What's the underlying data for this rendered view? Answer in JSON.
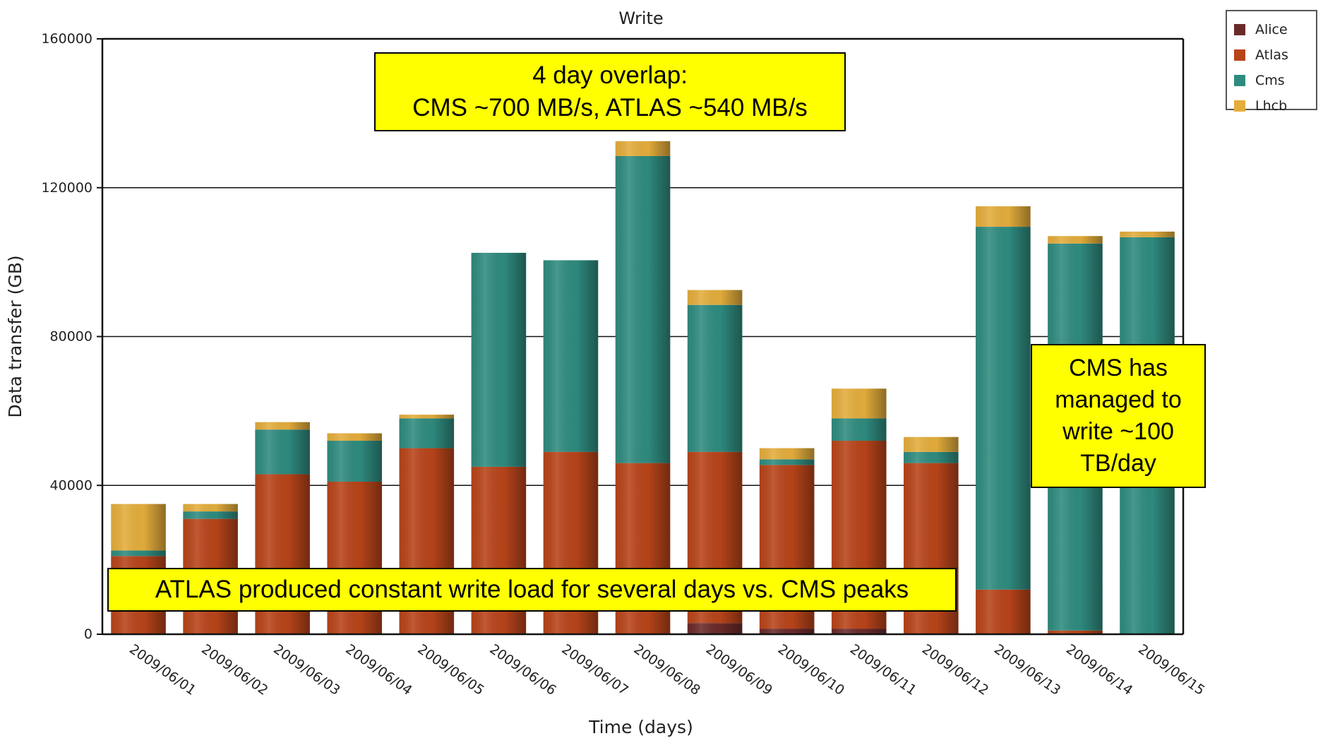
{
  "chart_data": {
    "type": "bar",
    "stacked": true,
    "title": "Write",
    "xlabel": "Time (days)",
    "ylabel": "Data transfer (GB)",
    "ylim": [
      0,
      160000
    ],
    "yticks": [
      "0",
      "40000",
      "80000",
      "120000",
      "160000"
    ],
    "grid": true,
    "legend_position": "top-right",
    "categories": [
      "2009/06/01",
      "2009/06/02",
      "2009/06/03",
      "2009/06/04",
      "2009/06/05",
      "2009/06/06",
      "2009/06/07",
      "2009/06/08",
      "2009/06/09",
      "2009/06/10",
      "2009/06/11",
      "2009/06/12",
      "2009/06/13",
      "2009/06/14",
      "2009/06/15"
    ],
    "series": [
      {
        "name": "Alice",
        "color": "#6b2a2a",
        "values": [
          0,
          0,
          0,
          0,
          0,
          0,
          0,
          0,
          3000,
          1500,
          1500,
          0,
          0,
          0,
          0
        ]
      },
      {
        "name": "Atlas",
        "color": "#b8441a",
        "values": [
          21000,
          31000,
          43000,
          41000,
          50000,
          45000,
          49000,
          46000,
          46000,
          44000,
          50500,
          46000,
          12000,
          1000,
          0
        ]
      },
      {
        "name": "Cms",
        "color": "#2f8b7f",
        "values": [
          1500,
          2000,
          12000,
          11000,
          8000,
          57500,
          51500,
          82500,
          39500,
          1500,
          6000,
          3000,
          97500,
          104000,
          106700
        ]
      },
      {
        "name": "Lhcb",
        "color": "#e4ad3c",
        "values": [
          12500,
          2000,
          2000,
          2000,
          1000,
          0,
          0,
          4000,
          4000,
          3000,
          8000,
          4000,
          5500,
          2000,
          1500
        ]
      }
    ],
    "annotations": [
      {
        "id": "top",
        "lines": [
          "4 day overlap:",
          "CMS ~700 MB/s, ATLAS ~540 MB/s"
        ]
      },
      {
        "id": "right",
        "lines": [
          "CMS has",
          "managed to",
          "write ~100",
          "TB/day"
        ]
      },
      {
        "id": "bottom",
        "lines": [
          "ATLAS produced constant write load for several days vs. CMS peaks"
        ]
      }
    ]
  }
}
